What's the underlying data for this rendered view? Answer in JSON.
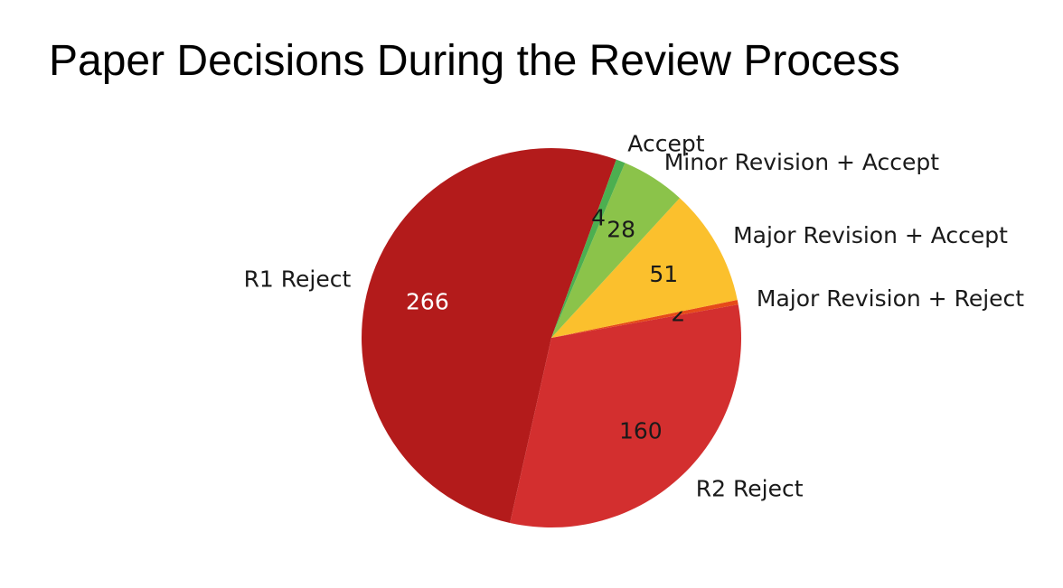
{
  "chart_data": {
    "type": "pie",
    "title": "Paper Decisions During the Review Process",
    "slices": [
      {
        "label": "R1 Reject",
        "value": 266,
        "color": "#b31b1b",
        "value_color": "#ffffff"
      },
      {
        "label": "R2 Reject",
        "value": 160,
        "color": "#d32f2f",
        "value_color": "#1a1a1a"
      },
      {
        "label": "Major Revision + Reject",
        "value": 2,
        "color": "#e64a19",
        "value_color": "#1a1a1a"
      },
      {
        "label": "Major Revision + Accept",
        "value": 51,
        "color": "#fbc02d",
        "value_color": "#1a1a1a"
      },
      {
        "label": "Minor Revision + Accept",
        "value": 28,
        "color": "#8bc34a",
        "value_color": "#1a1a1a"
      },
      {
        "label": "Accept",
        "value": 4,
        "color": "#4caf50",
        "value_color": "#1a1a1a"
      }
    ]
  }
}
